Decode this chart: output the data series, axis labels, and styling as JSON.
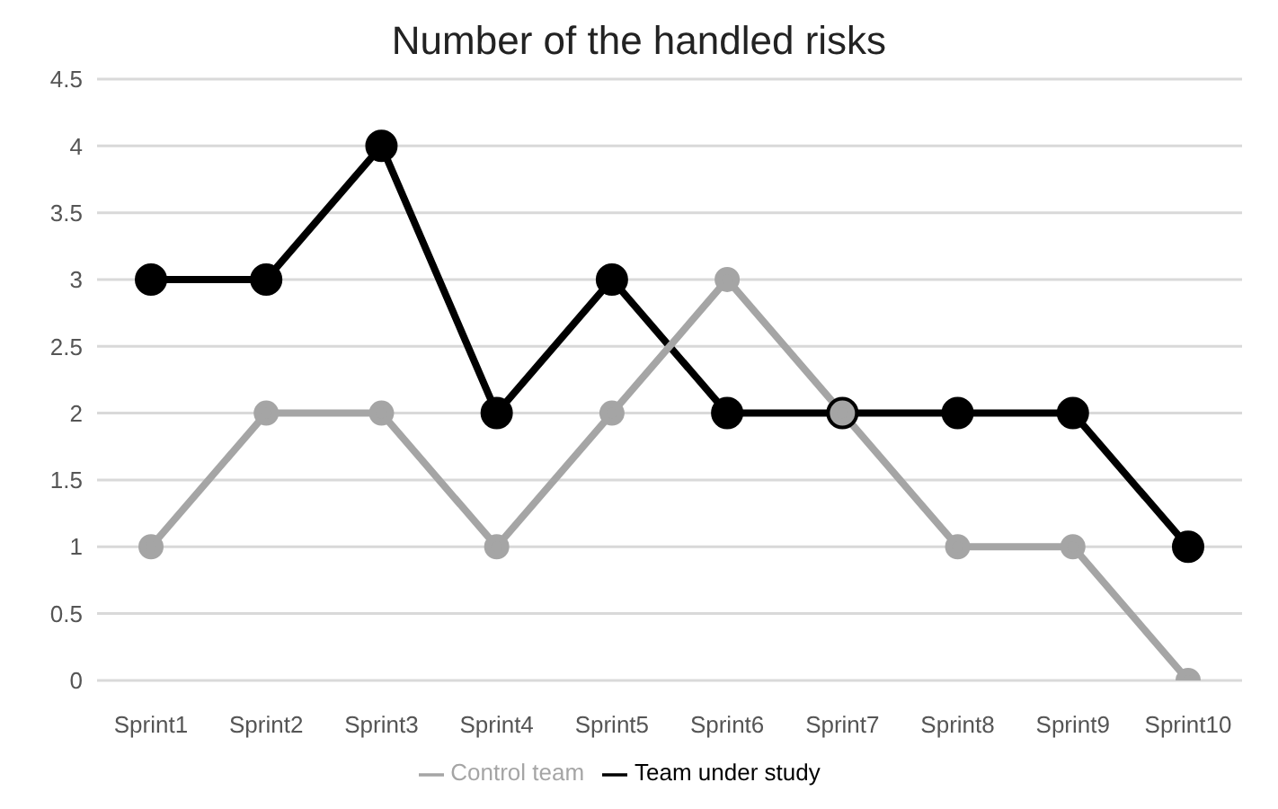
{
  "chart_data": {
    "type": "line",
    "title": "Number of the handled risks",
    "categories": [
      "Sprint1",
      "Sprint2",
      "Sprint3",
      "Sprint4",
      "Sprint5",
      "Sprint6",
      "Sprint7",
      "Sprint8",
      "Sprint9",
      "Sprint10"
    ],
    "series": [
      {
        "name": "Team under study",
        "color": "#000000",
        "values": [
          3,
          3,
          4,
          2,
          3,
          2,
          2,
          2,
          2,
          1
        ]
      },
      {
        "name": "Control team",
        "color": "#a5a5a5",
        "values": [
          1,
          2,
          2,
          1,
          2,
          3,
          2,
          1,
          1,
          0
        ]
      }
    ],
    "ylim": [
      0,
      4.5
    ],
    "yticks": [
      0,
      0.5,
      1,
      1.5,
      2,
      2.5,
      3,
      3.5,
      4,
      4.5
    ],
    "grid": "y",
    "legend": "bottom",
    "marker": "circle",
    "line_style": "solid"
  }
}
